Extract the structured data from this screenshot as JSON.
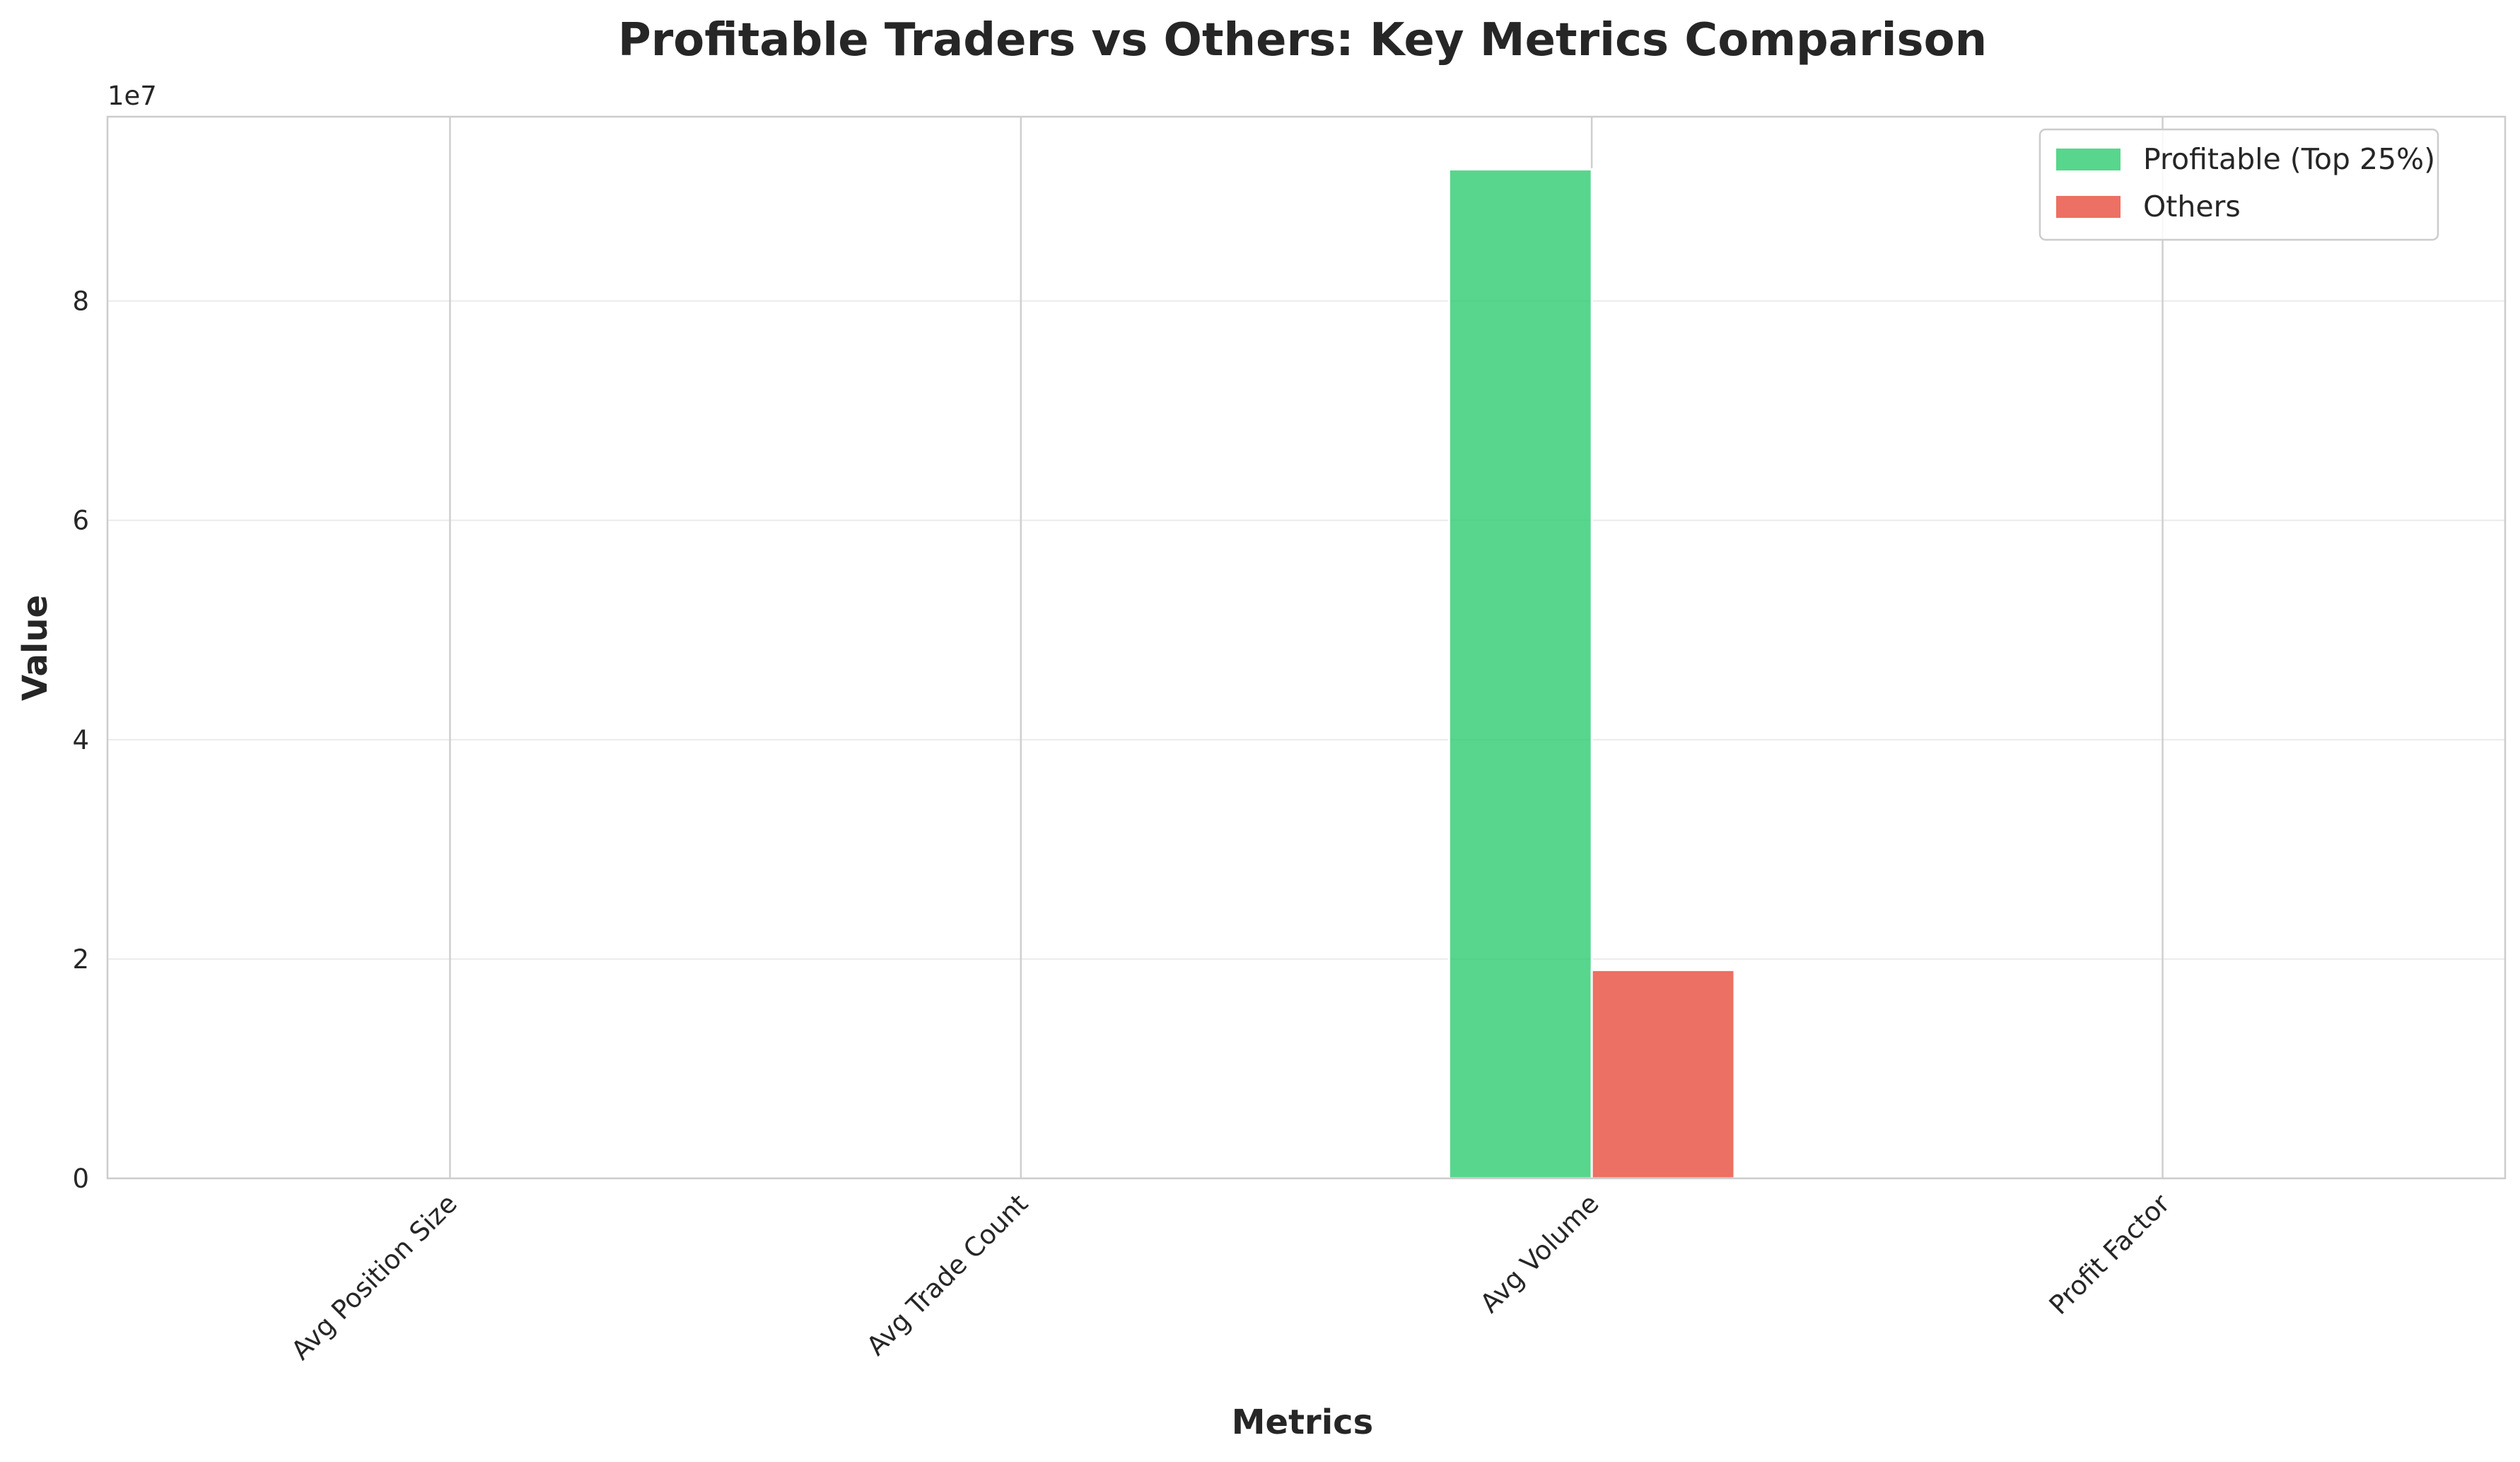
{
  "chart_data": {
    "type": "bar",
    "title": "Profitable Traders vs Others: Key Metrics Comparison",
    "xlabel": "Metrics",
    "ylabel": "Value",
    "y_offset_label": "1e7",
    "categories": [
      "Avg Position Size",
      "Avg Trade Count",
      "Avg Volume",
      "Profit Factor"
    ],
    "series": [
      {
        "name": "Profitable (Top 25%)",
        "color": "#2ecc71",
        "values": [
          0,
          0,
          92000000,
          0
        ]
      },
      {
        "name": "Others",
        "color": "#e74c3c",
        "values": [
          0,
          0,
          19000000,
          0
        ]
      }
    ],
    "ylim": [
      0,
      96800000
    ],
    "yticks": [
      0,
      20000000,
      40000000,
      60000000,
      80000000
    ],
    "ytick_labels": [
      "0",
      "2",
      "4",
      "6",
      "8"
    ],
    "legend_position": "top-right",
    "grid": true
  }
}
